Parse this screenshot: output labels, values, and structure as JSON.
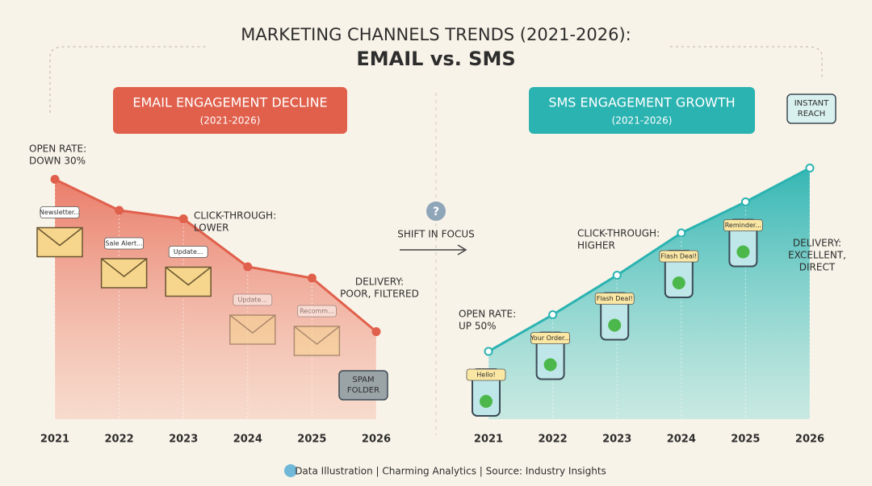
{
  "title_line1": "MARKETING CHANNELS TRENDS (2021-2026):",
  "title_line2": "EMAIL vs. SMS",
  "center_note": "SHIFT IN FOCUS",
  "footer": "Data Illustration | Charming Analytics | Source: Industry Insights",
  "chart_data": [
    {
      "type": "area",
      "title": "EMAIL ENGAGEMENT DECLINE",
      "subtitle": "(2021-2026)",
      "categories": [
        "2021",
        "2022",
        "2023",
        "2024",
        "2025",
        "2026"
      ],
      "values": [
        85,
        74,
        71,
        54,
        50,
        31
      ],
      "color": "#e0604c",
      "ylim": [
        0,
        100
      ],
      "annotations": [
        [
          "OPEN RATE:",
          "DOWN 30%"
        ],
        [
          "CLICK-THROUGH:",
          "LOWER"
        ],
        [
          "DELIVERY:",
          "POOR, FILTERED"
        ]
      ],
      "icon_labels": [
        "Newsletter...",
        "Sale Alert...",
        "Update...",
        "Update...",
        "Recomm..."
      ],
      "badge": [
        "SPAM",
        "FOLDER"
      ]
    },
    {
      "type": "area",
      "title": "SMS ENGAGEMENT GROWTH",
      "subtitle": "(2021-2026)",
      "categories": [
        "2021",
        "2022",
        "2023",
        "2024",
        "2025",
        "2026"
      ],
      "values": [
        24,
        37,
        51,
        66,
        77,
        89
      ],
      "color": "#2bb3b1",
      "ylim": [
        0,
        100
      ],
      "annotations": [
        [
          "OPEN RATE:",
          "UP 50%"
        ],
        [
          "CLICK-THROUGH:",
          "HIGHER"
        ],
        [
          "DELIVERY:",
          "EXCELLENT,",
          "DIRECT"
        ]
      ],
      "icon_labels": [
        "Hello!",
        "Your Order...",
        "Flash Deal!",
        "Flash Deal!",
        "Reminder..."
      ],
      "badge": [
        "INSTANT",
        "REACH"
      ]
    }
  ]
}
